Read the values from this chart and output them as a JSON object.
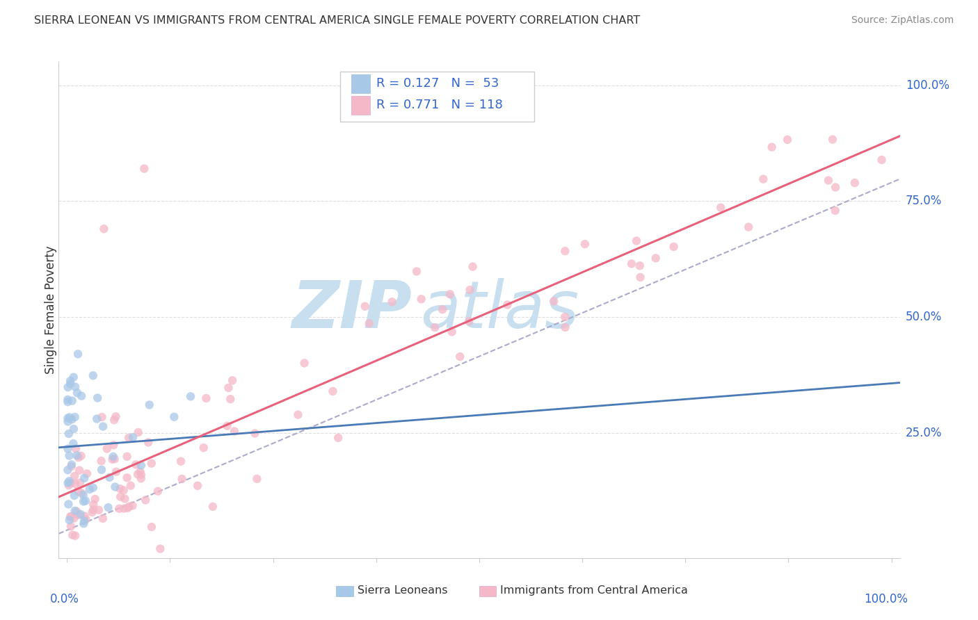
{
  "title": "SIERRA LEONEAN VS IMMIGRANTS FROM CENTRAL AMERICA SINGLE FEMALE POVERTY CORRELATION CHART",
  "source": "Source: ZipAtlas.com",
  "ylabel": "Single Female Poverty",
  "legend_r1": "R = 0.127",
  "legend_n1": "N =  53",
  "legend_r2": "R = 0.771",
  "legend_n2": "N = 118",
  "color_sl": "#a8c8e8",
  "color_ca": "#f4b8c8",
  "line_sl": "#4a7ab5",
  "line_ca": "#e8607a",
  "line_ref_color": "#aaaacc",
  "background_color": "#ffffff",
  "watermark_zip": "ZIP",
  "watermark_atlas": "atlas",
  "watermark_color": "#c8dff0",
  "grid_color": "#dddddd",
  "axis_color": "#cccccc",
  "label_color": "#3366cc",
  "text_color": "#333333",
  "source_color": "#888888"
}
